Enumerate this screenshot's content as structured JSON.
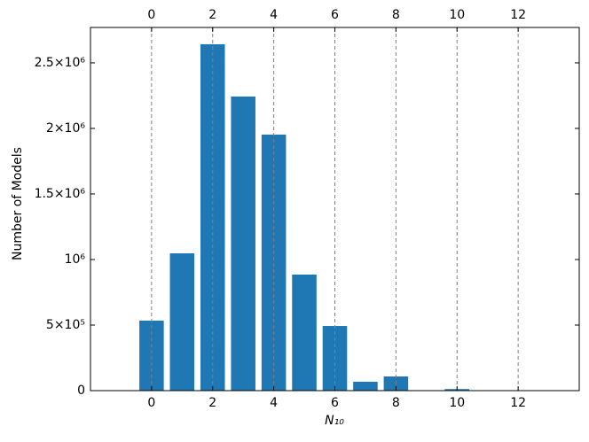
{
  "chart_data": {
    "type": "bar",
    "x_label": "N₁₀",
    "y_label": "Number of Models",
    "x": [
      0,
      1,
      2,
      3,
      4,
      5,
      6,
      7,
      8,
      9,
      10,
      11,
      12
    ],
    "values": [
      534000,
      1047000,
      2642000,
      2243000,
      1953000,
      885000,
      493000,
      68000,
      108000,
      0,
      12000,
      0,
      0
    ],
    "color": "#1f77b4",
    "xlim": [
      -2,
      14
    ],
    "xticks": [
      0,
      2,
      4,
      6,
      8,
      10,
      12
    ],
    "ylim": [
      0,
      2770000
    ],
    "yticks": [
      0,
      {
        "value": 500000,
        "label": "5×10⁵"
      },
      {
        "value": 1000000,
        "label": "10⁶"
      },
      {
        "value": 1500000,
        "label": "1.5×10⁶"
      },
      {
        "value": 2000000,
        "label": "2×10⁶"
      },
      {
        "value": 2500000,
        "label": "2.5×10⁶"
      }
    ],
    "grid": true
  }
}
